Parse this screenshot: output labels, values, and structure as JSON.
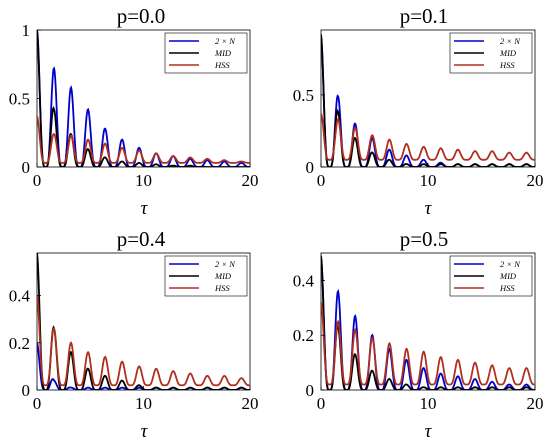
{
  "chart_data": [
    {
      "type": "line",
      "title": "p=0.0",
      "xlabel": "τ",
      "ylabel": "",
      "xlim": [
        0,
        20
      ],
      "ylim": [
        0,
        1
      ],
      "xticks": [
        "0",
        "10",
        "20"
      ],
      "yticks": [
        "0",
        "0.5",
        "1"
      ],
      "yticks_values": [
        0,
        0.5,
        1
      ],
      "legend_position": "top-right",
      "series": [
        {
          "name": "2 × N",
          "color": "#0000CC",
          "x": [
            0,
            1.6,
            3.2,
            4.8,
            6.4,
            8.0,
            9.6,
            11.2,
            12.8,
            14.4,
            16.0,
            17.6,
            19.2
          ],
          "y": [
            1.0,
            0.72,
            0.58,
            0.42,
            0.28,
            0.2,
            0.14,
            0.1,
            0.08,
            0.06,
            0.05,
            0.04,
            0.03
          ],
          "floor": 0.0
        },
        {
          "name": "MID",
          "color": "#000000",
          "x": [
            0,
            1.6,
            3.2,
            4.8,
            6.4,
            8.0,
            9.6,
            11.2,
            12.8,
            14.4,
            16.0,
            17.6,
            19.2
          ],
          "y": [
            1.0,
            0.42,
            0.24,
            0.13,
            0.07,
            0.04,
            0.03,
            0.02,
            0.01,
            0.01,
            0.0,
            0.0,
            0.0
          ],
          "floor": 0.0
        },
        {
          "name": "HSS",
          "color": "#B03020",
          "x": [
            0,
            1.6,
            3.2,
            4.8,
            6.4,
            8.0,
            9.6,
            11.2,
            12.8,
            14.4,
            16.0,
            17.6,
            19.2
          ],
          "y": [
            0.37,
            0.24,
            0.23,
            0.2,
            0.17,
            0.14,
            0.12,
            0.1,
            0.08,
            0.07,
            0.06,
            0.05,
            0.04
          ],
          "floor": 0.03
        }
      ]
    },
    {
      "type": "line",
      "title": "p=0.1",
      "xlabel": "τ",
      "ylabel": "",
      "xlim": [
        0,
        20
      ],
      "ylim": [
        0,
        0.95
      ],
      "xticks": [
        "0",
        "10",
        "20"
      ],
      "yticks": [
        "0",
        "0.5"
      ],
      "yticks_values": [
        0,
        0.5
      ],
      "legend_position": "top-right",
      "series": [
        {
          "name": "2 × N",
          "color": "#0000CC",
          "x": [
            0,
            1.6,
            3.2,
            4.8,
            6.4,
            8.0,
            9.6,
            11.2,
            12.8
          ],
          "y": [
            0.9,
            0.49,
            0.3,
            0.2,
            0.12,
            0.08,
            0.05,
            0.03,
            0.02
          ],
          "floor": 0.0
        },
        {
          "name": "MID",
          "color": "#000000",
          "x": [
            0,
            1.6,
            3.2,
            4.8,
            6.4,
            8.0
          ],
          "y": [
            0.92,
            0.38,
            0.2,
            0.1,
            0.05,
            0.02
          ],
          "floor": 0.0
        },
        {
          "name": "HSS",
          "color": "#B03020",
          "x": [
            0,
            1.6,
            3.2,
            4.8,
            6.4,
            8.0,
            9.6,
            11.2,
            12.8,
            14.4,
            16.0,
            17.6,
            19.2
          ],
          "y": [
            0.37,
            0.33,
            0.27,
            0.22,
            0.19,
            0.16,
            0.14,
            0.13,
            0.12,
            0.11,
            0.11,
            0.1,
            0.1
          ],
          "floor": 0.05
        }
      ]
    },
    {
      "type": "line",
      "title": "p=0.4",
      "xlabel": "τ",
      "ylabel": "",
      "xlim": [
        0,
        20
      ],
      "ylim": [
        0,
        0.58
      ],
      "xticks": [
        "0",
        "10",
        "20"
      ],
      "yticks": [
        "0",
        "0.2",
        "0.4"
      ],
      "yticks_values": [
        0,
        0.2,
        0.4
      ],
      "legend_position": "top-right",
      "series": [
        {
          "name": "2 × N",
          "color": "#0000CC",
          "x": [
            0,
            1.6,
            3.2
          ],
          "y": [
            0.2,
            0.04,
            0.01
          ],
          "floor": 0.0
        },
        {
          "name": "MID",
          "color": "#000000",
          "x": [
            0,
            1.6,
            3.2,
            4.8,
            6.4,
            8.0,
            9.6,
            11.2
          ],
          "y": [
            0.58,
            0.26,
            0.16,
            0.09,
            0.06,
            0.04,
            0.02,
            0.01
          ],
          "floor": 0.0
        },
        {
          "name": "HSS",
          "color": "#B03020",
          "x": [
            0,
            1.6,
            3.2,
            4.8,
            6.4,
            8.0,
            9.6,
            11.2,
            12.8,
            14.4,
            16.0,
            17.6,
            19.2
          ],
          "y": [
            0.4,
            0.26,
            0.2,
            0.16,
            0.14,
            0.12,
            0.1,
            0.09,
            0.08,
            0.07,
            0.06,
            0.06,
            0.05
          ],
          "floor": 0.02
        }
      ]
    },
    {
      "type": "line",
      "title": "p=0.5",
      "xlabel": "τ",
      "ylabel": "",
      "xlim": [
        0,
        20
      ],
      "ylim": [
        0,
        0.5
      ],
      "xticks": [
        "0",
        "10",
        "20"
      ],
      "yticks": [
        "0",
        "0.2",
        "0.4"
      ],
      "yticks_values": [
        0,
        0.2,
        0.4
      ],
      "legend_position": "top-right",
      "series": [
        {
          "name": "2 × N",
          "color": "#0000CC",
          "x": [
            0,
            1.6,
            3.2,
            4.8,
            6.4,
            8.0,
            9.6,
            11.2,
            12.8,
            14.4,
            16.0,
            17.6,
            19.2
          ],
          "y": [
            0.48,
            0.36,
            0.27,
            0.2,
            0.15,
            0.11,
            0.08,
            0.06,
            0.05,
            0.04,
            0.03,
            0.02,
            0.02
          ],
          "floor": 0.0
        },
        {
          "name": "MID",
          "color": "#000000",
          "x": [
            0,
            1.6,
            3.2,
            4.8,
            6.4,
            8.0,
            9.6,
            11.2
          ],
          "y": [
            0.49,
            0.23,
            0.13,
            0.07,
            0.04,
            0.02,
            0.01,
            0.01
          ],
          "floor": 0.0
        },
        {
          "name": "HSS",
          "color": "#B03020",
          "x": [
            0,
            1.6,
            3.2,
            4.8,
            6.4,
            8.0,
            9.6,
            11.2,
            12.8,
            14.4,
            16.0,
            17.6,
            19.2
          ],
          "y": [
            0.32,
            0.25,
            0.22,
            0.19,
            0.17,
            0.15,
            0.14,
            0.12,
            0.11,
            0.1,
            0.09,
            0.08,
            0.08
          ],
          "floor": 0.02
        }
      ]
    }
  ]
}
